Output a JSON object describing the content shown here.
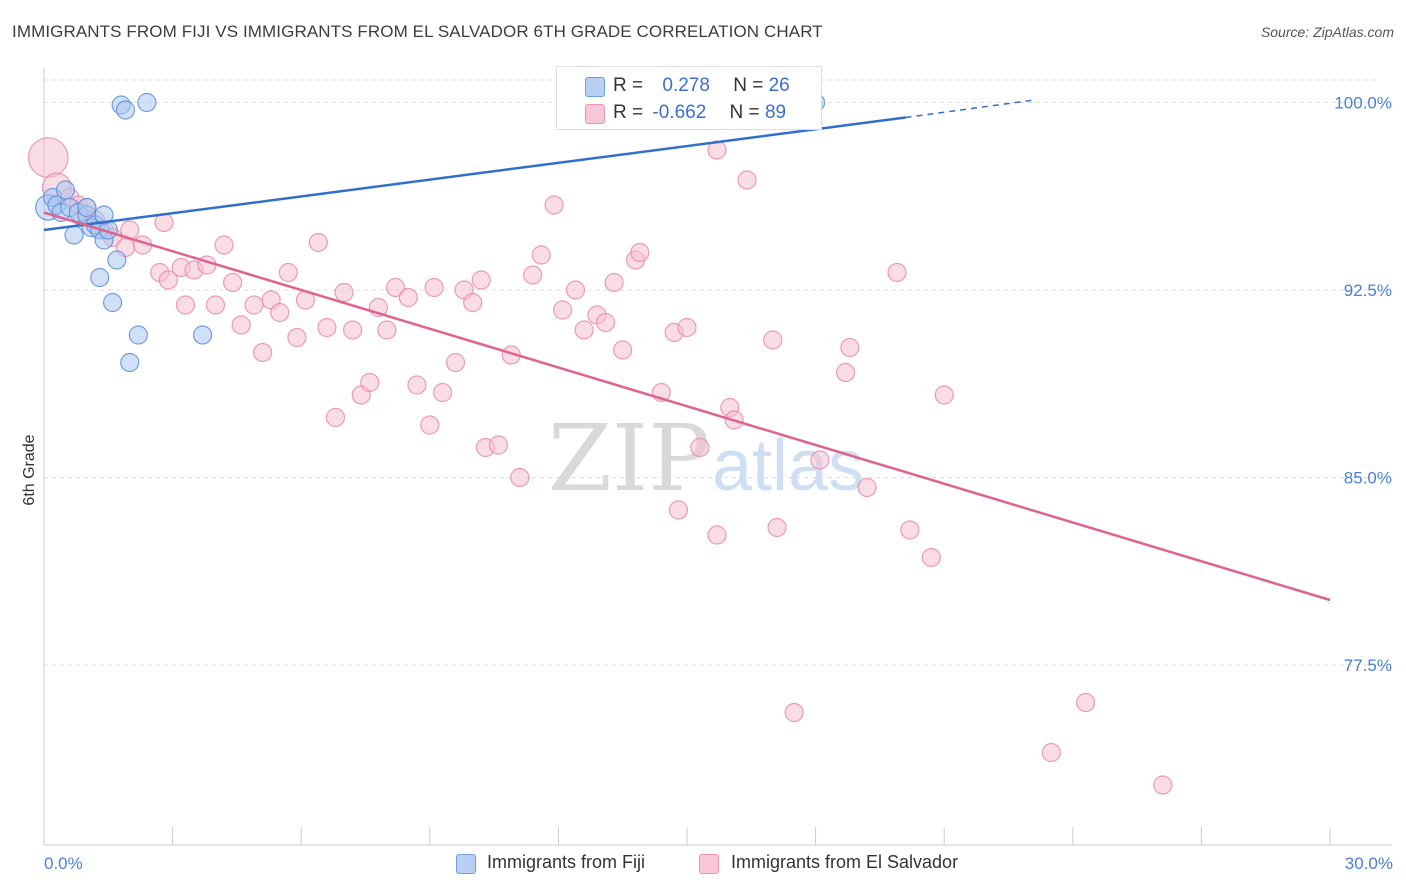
{
  "title": "IMMIGRANTS FROM FIJI VS IMMIGRANTS FROM EL SALVADOR 6TH GRADE CORRELATION CHART",
  "source": "Source: ZipAtlas.com",
  "watermark": {
    "zip": "ZIP",
    "atlas": "atlas"
  },
  "legend_stats": {
    "fiji": {
      "r_label": "R =",
      "r_value": "0.278",
      "n_label": "N =",
      "n_value": "26"
    },
    "elsalvador": {
      "r_label": "R =",
      "r_value": "-0.662",
      "n_label": "N =",
      "n_value": "89"
    }
  },
  "colors": {
    "fiji_fill": "#a9c6f0",
    "fiji_stroke": "#5b8fd8",
    "fiji_line": "#2f6fce",
    "sv_fill": "#f6bfd0",
    "sv_stroke": "#e98aab",
    "sv_line": "#e0628f",
    "axis_text": "#4a7fd4",
    "grid": "#dedede"
  },
  "chart_data": {
    "type": "scatter",
    "title": "IMMIGRANTS FROM FIJI VS IMMIGRANTS FROM EL SALVADOR 6TH GRADE CORRELATION CHART",
    "xlabel": "",
    "ylabel": "6th Grade",
    "xlim": [
      0,
      30
    ],
    "ylim": [
      70.3,
      101.3
    ],
    "x_tick_labels": [
      "0.0%",
      "30.0%"
    ],
    "y_ticks": [
      77.5,
      85.0,
      92.5,
      100.0
    ],
    "y_tick_labels": [
      "77.5%",
      "85.0%",
      "92.5%",
      "100.0%"
    ],
    "legend_position": "bottom-center",
    "series": [
      {
        "name": "Immigrants from Fiji",
        "trend": {
          "x0": 0.0,
          "y0": 94.9,
          "x1": 20.1,
          "y1": 99.4,
          "dash_to_x": 23.1,
          "dash_to_y": 100.1
        },
        "points": [
          {
            "x": 0.1,
            "y": 95.8,
            "s": 1.4
          },
          {
            "x": 0.2,
            "y": 96.2,
            "s": 1
          },
          {
            "x": 0.3,
            "y": 95.9,
            "s": 1
          },
          {
            "x": 0.4,
            "y": 95.6,
            "s": 1
          },
          {
            "x": 0.5,
            "y": 96.5,
            "s": 1
          },
          {
            "x": 0.6,
            "y": 95.8,
            "s": 1
          },
          {
            "x": 0.7,
            "y": 94.7,
            "s": 1
          },
          {
            "x": 0.8,
            "y": 95.6,
            "s": 1
          },
          {
            "x": 1.0,
            "y": 95.5,
            "s": 1
          },
          {
            "x": 1.0,
            "y": 95.8,
            "s": 1
          },
          {
            "x": 1.1,
            "y": 95.0,
            "s": 1
          },
          {
            "x": 1.2,
            "y": 95.1,
            "s": 1
          },
          {
            "x": 1.3,
            "y": 94.9,
            "s": 1
          },
          {
            "x": 1.4,
            "y": 94.5,
            "s": 1
          },
          {
            "x": 1.5,
            "y": 94.9,
            "s": 1
          },
          {
            "x": 1.7,
            "y": 93.7,
            "s": 1
          },
          {
            "x": 1.3,
            "y": 93.0,
            "s": 1
          },
          {
            "x": 1.6,
            "y": 92.0,
            "s": 1
          },
          {
            "x": 2.2,
            "y": 90.7,
            "s": 1
          },
          {
            "x": 2.0,
            "y": 89.6,
            "s": 1
          },
          {
            "x": 3.7,
            "y": 90.7,
            "s": 1
          },
          {
            "x": 1.8,
            "y": 99.9,
            "s": 1
          },
          {
            "x": 1.9,
            "y": 99.7,
            "s": 1
          },
          {
            "x": 2.4,
            "y": 100.0,
            "s": 1
          },
          {
            "x": 18.0,
            "y": 100.0,
            "s": 1
          },
          {
            "x": 1.4,
            "y": 95.5,
            "s": 1
          }
        ]
      },
      {
        "name": "Immigrants from El Salvador",
        "trend": {
          "x0": 0.0,
          "y0": 95.6,
          "x1": 30.0,
          "y1": 80.1
        },
        "points": [
          {
            "x": 0.1,
            "y": 97.8,
            "s": 2.2
          },
          {
            "x": 0.3,
            "y": 96.6,
            "s": 1.6
          },
          {
            "x": 0.6,
            "y": 96.2,
            "s": 1
          },
          {
            "x": 0.8,
            "y": 95.9,
            "s": 1
          },
          {
            "x": 1.0,
            "y": 95.8,
            "s": 1
          },
          {
            "x": 1.2,
            "y": 95.3,
            "s": 1
          },
          {
            "x": 1.4,
            "y": 94.9,
            "s": 1
          },
          {
            "x": 1.6,
            "y": 94.6,
            "s": 1
          },
          {
            "x": 1.9,
            "y": 94.2,
            "s": 1
          },
          {
            "x": 2.0,
            "y": 94.9,
            "s": 1
          },
          {
            "x": 2.3,
            "y": 94.3,
            "s": 1
          },
          {
            "x": 2.7,
            "y": 93.2,
            "s": 1
          },
          {
            "x": 2.8,
            "y": 95.2,
            "s": 1
          },
          {
            "x": 2.9,
            "y": 92.9,
            "s": 1
          },
          {
            "x": 3.2,
            "y": 93.4,
            "s": 1
          },
          {
            "x": 3.3,
            "y": 91.9,
            "s": 1
          },
          {
            "x": 3.5,
            "y": 93.3,
            "s": 1
          },
          {
            "x": 3.8,
            "y": 93.5,
            "s": 1
          },
          {
            "x": 4.0,
            "y": 91.9,
            "s": 1
          },
          {
            "x": 4.2,
            "y": 94.3,
            "s": 1
          },
          {
            "x": 4.4,
            "y": 92.8,
            "s": 1
          },
          {
            "x": 4.6,
            "y": 91.1,
            "s": 1
          },
          {
            "x": 4.9,
            "y": 91.9,
            "s": 1
          },
          {
            "x": 5.1,
            "y": 90.0,
            "s": 1
          },
          {
            "x": 5.3,
            "y": 92.1,
            "s": 1
          },
          {
            "x": 5.5,
            "y": 91.6,
            "s": 1
          },
          {
            "x": 5.7,
            "y": 93.2,
            "s": 1
          },
          {
            "x": 5.9,
            "y": 90.6,
            "s": 1
          },
          {
            "x": 6.1,
            "y": 92.1,
            "s": 1
          },
          {
            "x": 6.4,
            "y": 94.4,
            "s": 1
          },
          {
            "x": 6.6,
            "y": 91.0,
            "s": 1
          },
          {
            "x": 6.8,
            "y": 87.4,
            "s": 1
          },
          {
            "x": 7.0,
            "y": 92.4,
            "s": 1
          },
          {
            "x": 7.2,
            "y": 90.9,
            "s": 1
          },
          {
            "x": 7.4,
            "y": 88.3,
            "s": 1
          },
          {
            "x": 7.6,
            "y": 88.8,
            "s": 1
          },
          {
            "x": 7.8,
            "y": 91.8,
            "s": 1
          },
          {
            "x": 8.0,
            "y": 90.9,
            "s": 1
          },
          {
            "x": 8.2,
            "y": 92.6,
            "s": 1
          },
          {
            "x": 8.5,
            "y": 92.2,
            "s": 1
          },
          {
            "x": 8.7,
            "y": 88.7,
            "s": 1
          },
          {
            "x": 9.0,
            "y": 87.1,
            "s": 1
          },
          {
            "x": 9.1,
            "y": 92.6,
            "s": 1
          },
          {
            "x": 9.3,
            "y": 88.4,
            "s": 1
          },
          {
            "x": 9.6,
            "y": 89.6,
            "s": 1
          },
          {
            "x": 9.8,
            "y": 92.5,
            "s": 1
          },
          {
            "x": 10.0,
            "y": 92.0,
            "s": 1
          },
          {
            "x": 10.2,
            "y": 92.9,
            "s": 1
          },
          {
            "x": 10.3,
            "y": 86.2,
            "s": 1
          },
          {
            "x": 10.6,
            "y": 86.3,
            "s": 1
          },
          {
            "x": 10.9,
            "y": 89.9,
            "s": 1
          },
          {
            "x": 11.1,
            "y": 85.0,
            "s": 1
          },
          {
            "x": 11.4,
            "y": 93.1,
            "s": 1
          },
          {
            "x": 11.6,
            "y": 93.9,
            "s": 1
          },
          {
            "x": 11.9,
            "y": 95.9,
            "s": 1
          },
          {
            "x": 12.1,
            "y": 91.7,
            "s": 1
          },
          {
            "x": 12.4,
            "y": 92.5,
            "s": 1
          },
          {
            "x": 12.6,
            "y": 90.9,
            "s": 1
          },
          {
            "x": 12.9,
            "y": 91.5,
            "s": 1
          },
          {
            "x": 13.1,
            "y": 91.2,
            "s": 1
          },
          {
            "x": 13.3,
            "y": 92.8,
            "s": 1
          },
          {
            "x": 13.5,
            "y": 90.1,
            "s": 1
          },
          {
            "x": 13.8,
            "y": 93.7,
            "s": 1
          },
          {
            "x": 13.9,
            "y": 94.0,
            "s": 1
          },
          {
            "x": 14.4,
            "y": 88.4,
            "s": 1
          },
          {
            "x": 14.7,
            "y": 90.8,
            "s": 1
          },
          {
            "x": 15.0,
            "y": 91.0,
            "s": 1
          },
          {
            "x": 15.3,
            "y": 86.2,
            "s": 1
          },
          {
            "x": 15.7,
            "y": 82.7,
            "s": 1
          },
          {
            "x": 16.0,
            "y": 87.8,
            "s": 1
          },
          {
            "x": 16.1,
            "y": 87.3,
            "s": 1
          },
          {
            "x": 16.4,
            "y": 96.9,
            "s": 1
          },
          {
            "x": 17.0,
            "y": 90.5,
            "s": 1
          },
          {
            "x": 17.1,
            "y": 83.0,
            "s": 1
          },
          {
            "x": 17.5,
            "y": 75.6,
            "s": 1
          },
          {
            "x": 18.1,
            "y": 85.7,
            "s": 1
          },
          {
            "x": 18.7,
            "y": 89.2,
            "s": 1
          },
          {
            "x": 18.8,
            "y": 90.2,
            "s": 1
          },
          {
            "x": 19.2,
            "y": 84.6,
            "s": 1
          },
          {
            "x": 19.9,
            "y": 93.2,
            "s": 1
          },
          {
            "x": 20.2,
            "y": 82.9,
            "s": 1
          },
          {
            "x": 20.7,
            "y": 81.8,
            "s": 1
          },
          {
            "x": 21.0,
            "y": 88.3,
            "s": 1
          },
          {
            "x": 14.8,
            "y": 83.7,
            "s": 1
          },
          {
            "x": 15.7,
            "y": 98.1,
            "s": 1
          },
          {
            "x": 23.5,
            "y": 74.0,
            "s": 1
          },
          {
            "x": 24.3,
            "y": 76.0,
            "s": 1
          },
          {
            "x": 26.1,
            "y": 72.7,
            "s": 1
          },
          {
            "x": 0.9,
            "y": 95.4,
            "s": 1
          }
        ]
      }
    ]
  },
  "bottom_legend": {
    "fiji": "Immigrants from Fiji",
    "elsalvador": "Immigrants from El Salvador"
  }
}
